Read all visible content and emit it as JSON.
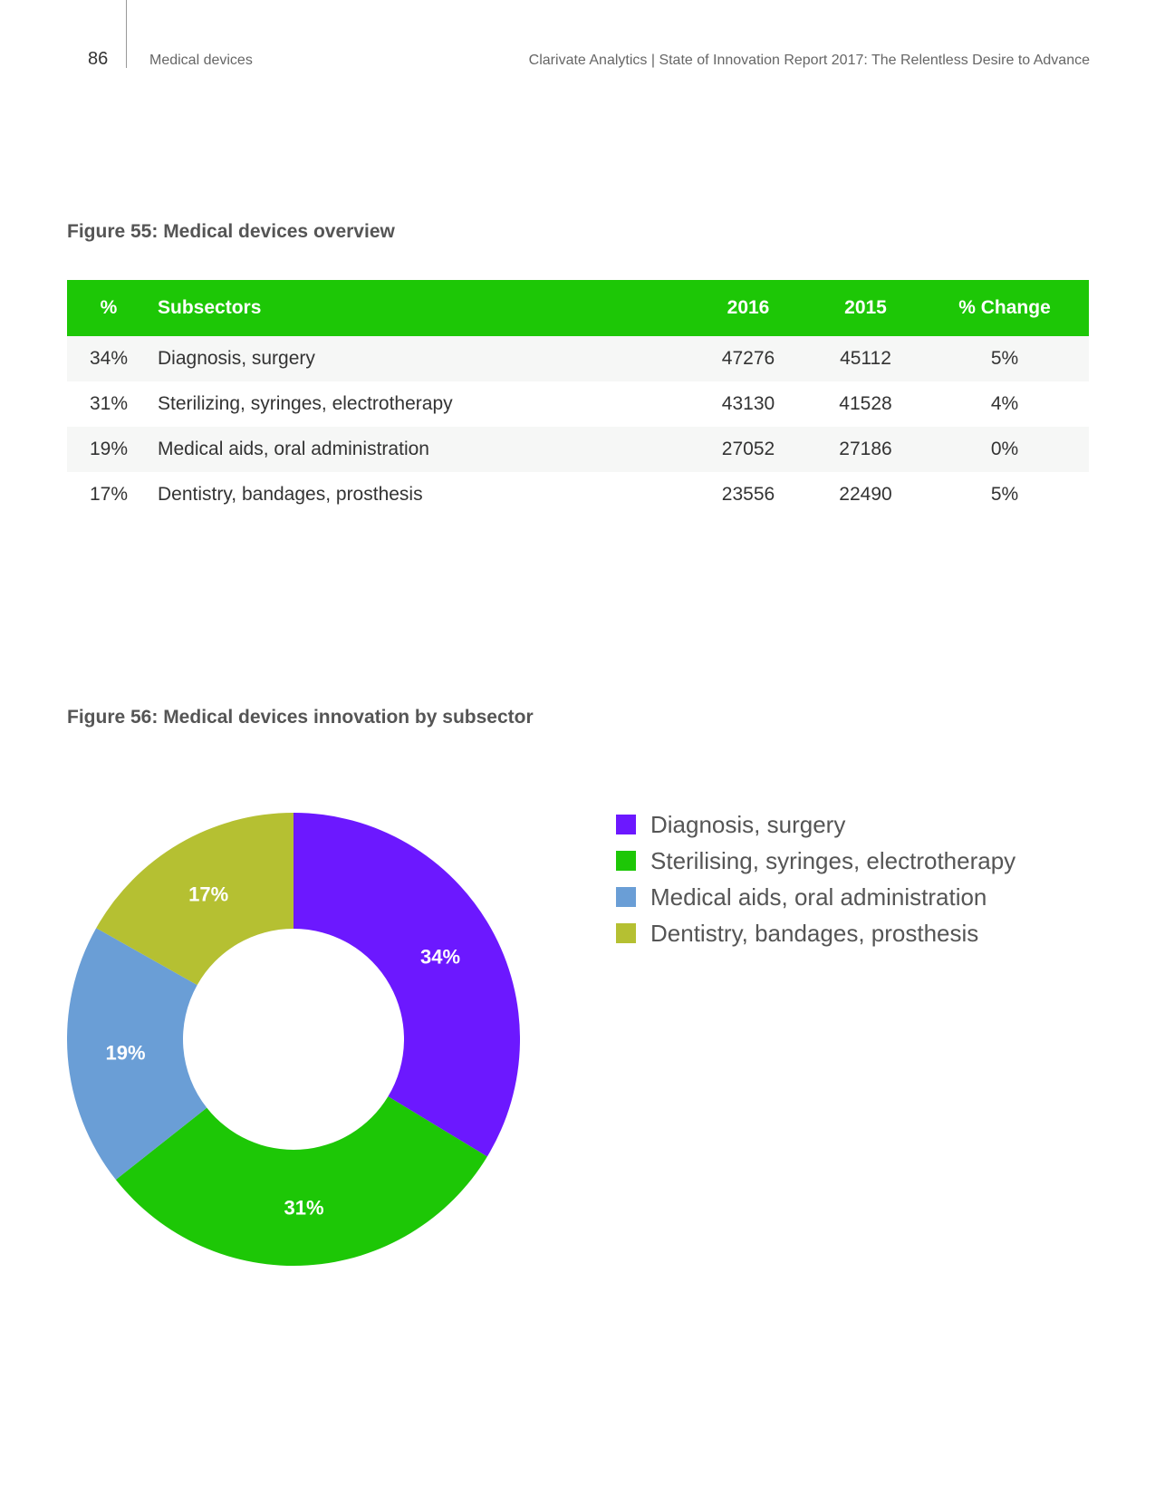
{
  "header": {
    "page_number": "86",
    "section": "Medical devices",
    "report_title": "Clarivate Analytics | State of Innovation Report 2017: The Relentless Desire to Advance"
  },
  "figure55": {
    "title": "Figure 55: Medical devices overview",
    "columns": [
      "%",
      "Subsectors",
      "2016",
      "2015",
      "% Change"
    ],
    "rows": [
      {
        "pct": "34%",
        "subsector": "Diagnosis, surgery",
        "y2016": "47276",
        "y2015": "45112",
        "change": "5%"
      },
      {
        "pct": "31%",
        "subsector": "Sterilizing, syringes, electrotherapy",
        "y2016": "43130",
        "y2015": "41528",
        "change": "4%"
      },
      {
        "pct": "19%",
        "subsector": "Medical aids, oral administration",
        "y2016": "27052",
        "y2015": "27186",
        "change": "0%"
      },
      {
        "pct": "17%",
        "subsector": "Dentistry, bandages, prosthesis",
        "y2016": "23556",
        "y2015": "22490",
        "change": "5%"
      }
    ]
  },
  "figure56": {
    "title": "Figure 56: Medical devices innovation by subsector"
  },
  "chart_data": {
    "type": "pie",
    "donut": true,
    "title": "Figure 56: Medical devices innovation by subsector",
    "legend_position": "right",
    "categories": [
      "Diagnosis, surgery",
      "Sterilising, syringes, electrotherapy",
      "Medical aids, oral administration",
      "Dentistry, bandages, prosthesis"
    ],
    "values": [
      34,
      31,
      19,
      17
    ],
    "labels": [
      "34%",
      "31%",
      "19%",
      "17%"
    ],
    "colors": [
      "#6c18ff",
      "#1dc706",
      "#6a9ed6",
      "#b5c032"
    ]
  },
  "colors": {
    "table_header": "#1dc706",
    "row_shade": "#f6f7f6"
  }
}
